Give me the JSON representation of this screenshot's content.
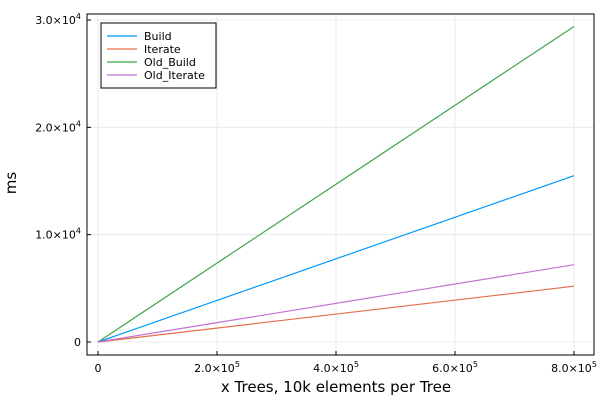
{
  "chart_data": {
    "type": "line",
    "title": "",
    "xlabel": "x Trees, 10k elements per Tree",
    "ylabel": "ms",
    "xlim": [
      0,
      800000
    ],
    "ylim": [
      0,
      30000
    ],
    "x_ticks": [
      {
        "value": 0,
        "mantissa": "0",
        "exp": ""
      },
      {
        "value": 200000,
        "mantissa": "2.0×10",
        "exp": "5"
      },
      {
        "value": 400000,
        "mantissa": "4.0×10",
        "exp": "5"
      },
      {
        "value": 600000,
        "mantissa": "6.0×10",
        "exp": "5"
      },
      {
        "value": 800000,
        "mantissa": "8.0×10",
        "exp": "5"
      }
    ],
    "y_ticks": [
      {
        "value": 0,
        "mantissa": "0",
        "exp": ""
      },
      {
        "value": 10000,
        "mantissa": "1.0×10",
        "exp": "4"
      },
      {
        "value": 20000,
        "mantissa": "2.0×10",
        "exp": "4"
      },
      {
        "value": 30000,
        "mantissa": "3.0×10",
        "exp": "4"
      }
    ],
    "grid": true,
    "legend_position": "top-left",
    "series": [
      {
        "name": "Build",
        "color": "#009af9",
        "x": [
          0,
          800000
        ],
        "y": [
          0,
          15500
        ]
      },
      {
        "name": "Iterate",
        "color": "#e26f46",
        "x": [
          0,
          800000
        ],
        "y": [
          0,
          5200
        ]
      },
      {
        "name": "Old_Build",
        "color": "#3ea44e",
        "x": [
          0,
          800000
        ],
        "y": [
          0,
          29400
        ]
      },
      {
        "name": "Old_Iterate",
        "color": "#c271d2",
        "x": [
          0,
          800000
        ],
        "y": [
          0,
          7200
        ]
      }
    ]
  }
}
